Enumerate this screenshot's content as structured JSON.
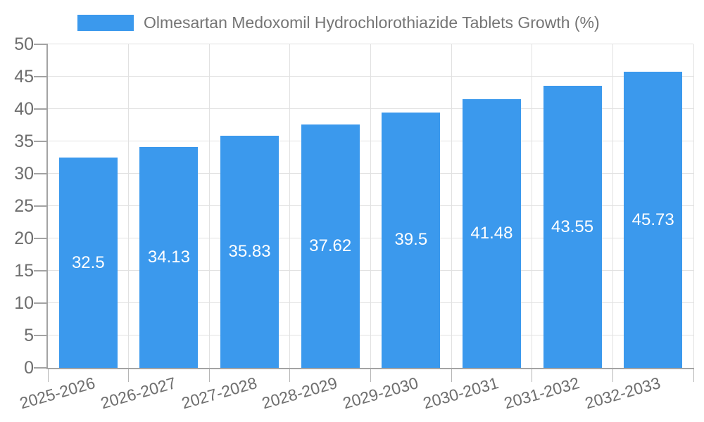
{
  "legend": {
    "label": "Olmesartan Medoxomil Hydrochlorothiazide Tablets Growth (%)"
  },
  "chart_data": {
    "type": "bar",
    "title": "Olmesartan Medoxomil Hydrochlorothiazide Tablets Growth (%)",
    "categories": [
      "2025-2026",
      "2026-2027",
      "2027-2028",
      "2028-2029",
      "2029-2030",
      "2030-2031",
      "2031-2032",
      "2032-2033"
    ],
    "values": [
      32.5,
      34.13,
      35.83,
      37.62,
      39.5,
      41.48,
      43.55,
      45.73
    ],
    "value_labels": [
      "32.5",
      "34.13",
      "35.83",
      "37.62",
      "39.5",
      "41.48",
      "43.55",
      "45.73"
    ],
    "y_ticks": [
      "0",
      "5",
      "10",
      "15",
      "20",
      "25",
      "30",
      "35",
      "40",
      "45",
      "50"
    ],
    "ylim": [
      0,
      50
    ],
    "xlabel": "",
    "ylabel": "",
    "grid": true,
    "legend_position": "top",
    "colors": {
      "bar": "#3B99ED",
      "axis": "#A3A3A3",
      "gridline": "#E1E1E1",
      "tick_label": "#6E6E6E",
      "legend_text": "#757575",
      "value_label": "#FFFFFF",
      "background": "#FFFFFF"
    }
  }
}
